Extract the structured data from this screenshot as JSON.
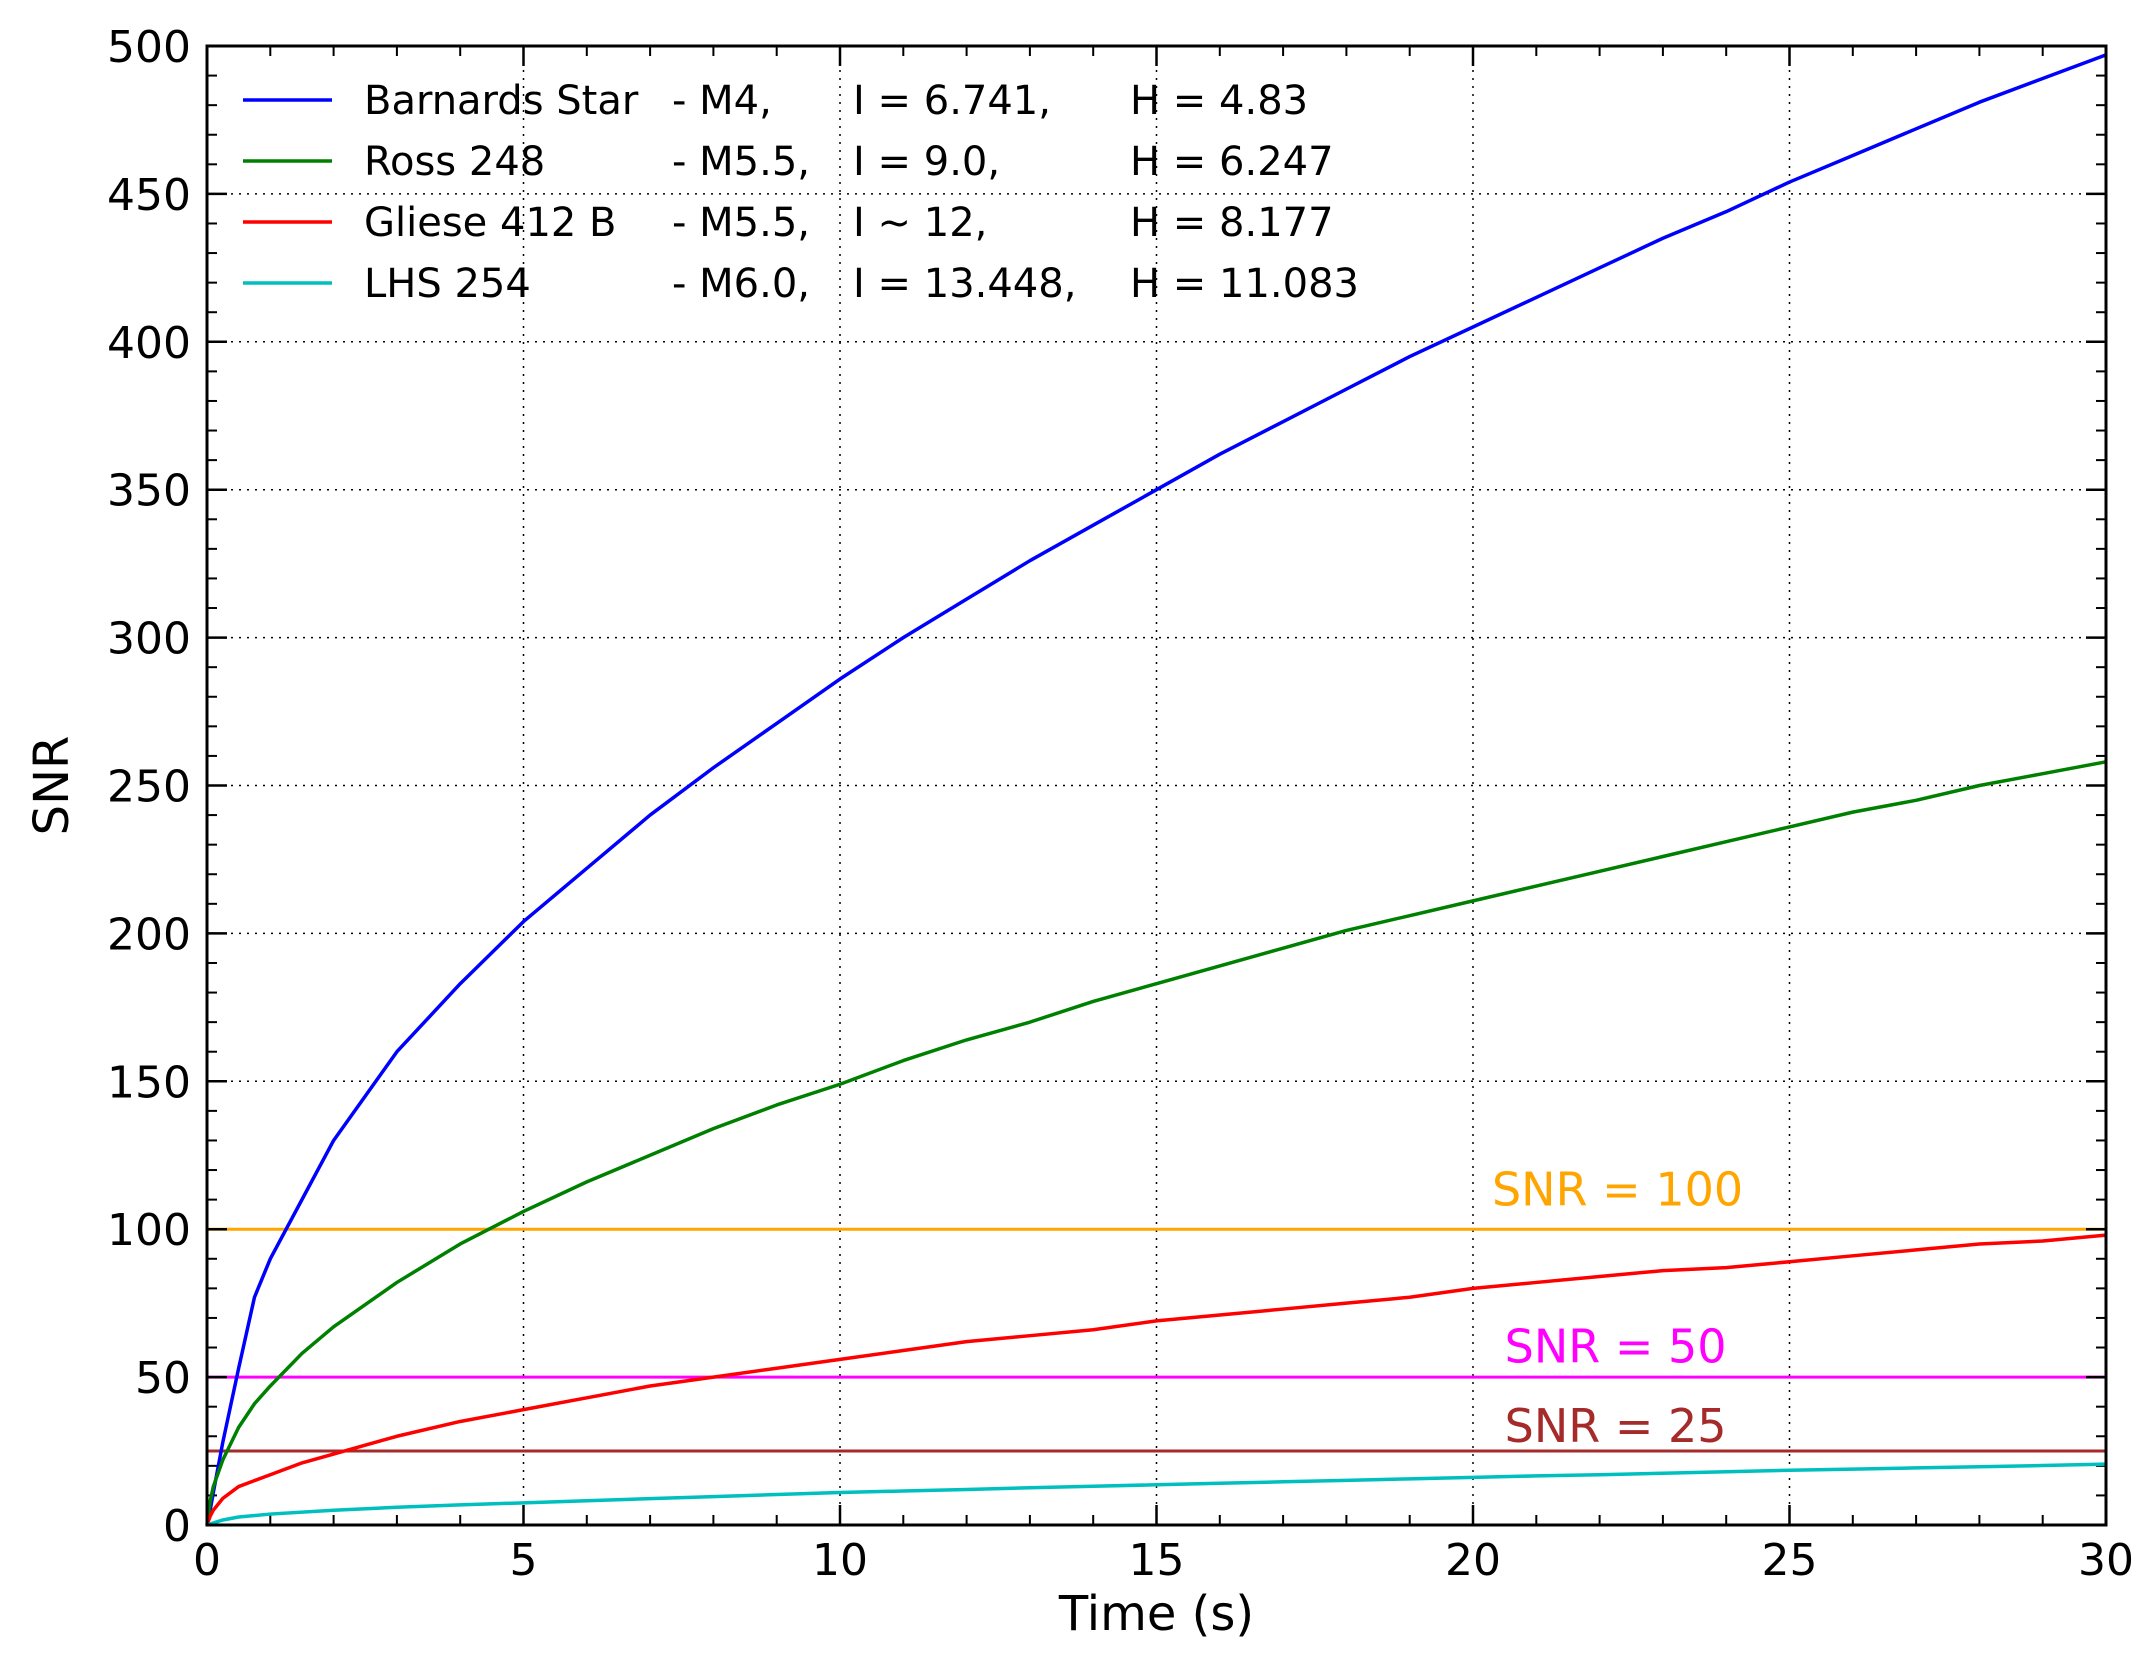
{
  "chart_data": {
    "type": "line",
    "xlabel": "Time (s)",
    "ylabel": "SNR",
    "xlim": [
      0,
      30
    ],
    "ylim": [
      0,
      500
    ],
    "x_ticks": [
      0,
      5,
      10,
      15,
      20,
      25,
      30
    ],
    "y_ticks": [
      0,
      50,
      100,
      150,
      200,
      250,
      300,
      350,
      400,
      450,
      500
    ],
    "grid": true,
    "legend_position": "top-left",
    "series": [
      {
        "name": "Barnards Star",
        "legend_cols": [
          "Barnards Star",
          "- M4,",
          "I = 6.741,",
          "H = 4.83"
        ],
        "color": "#0000ff",
        "x": [
          0,
          0.05,
          0.1,
          0.25,
          0.5,
          0.75,
          1,
          1.5,
          2,
          3,
          4,
          5,
          6,
          7,
          8,
          9,
          10,
          11,
          12,
          13,
          14,
          15,
          16,
          17,
          18,
          19,
          20,
          21,
          22,
          23,
          24,
          25,
          26,
          27,
          28,
          29,
          30
        ],
        "y": [
          0,
          5,
          11,
          28,
          53,
          77,
          90,
          110,
          130,
          160,
          183,
          204,
          222,
          240,
          256,
          271,
          286,
          300,
          313,
          326,
          338,
          350,
          362,
          373,
          384,
          395,
          405,
          415,
          425,
          435,
          444,
          454,
          463,
          472,
          481,
          489,
          497
        ]
      },
      {
        "name": "Ross 248",
        "legend_cols": [
          "Ross 248",
          "- M5.5,",
          "I = 9.0,",
          "H = 6.247"
        ],
        "color": "#008000",
        "x": [
          0,
          0.05,
          0.1,
          0.25,
          0.5,
          0.75,
          1,
          1.5,
          2,
          3,
          4,
          5,
          6,
          7,
          8,
          9,
          10,
          11,
          12,
          13,
          14,
          15,
          16,
          17,
          18,
          19,
          20,
          21,
          22,
          23,
          24,
          25,
          26,
          27,
          28,
          29,
          30
        ],
        "y": [
          0,
          8,
          13,
          22,
          33,
          41,
          47,
          58,
          67,
          82,
          95,
          106,
          116,
          125,
          134,
          142,
          149,
          157,
          164,
          170,
          177,
          183,
          189,
          195,
          201,
          206,
          211,
          216,
          221,
          226,
          231,
          236,
          241,
          245,
          250,
          254,
          258
        ]
      },
      {
        "name": "Gliese 412 B",
        "legend_cols": [
          "Gliese 412 B",
          "- M5.5,",
          "I ~ 12,",
          "H = 8.177"
        ],
        "color": "#ff0000",
        "x": [
          0,
          0.05,
          0.1,
          0.25,
          0.5,
          0.75,
          1,
          1.5,
          2,
          3,
          4,
          5,
          6,
          7,
          8,
          9,
          10,
          11,
          12,
          13,
          14,
          15,
          16,
          17,
          18,
          19,
          20,
          21,
          22,
          23,
          24,
          25,
          26,
          27,
          28,
          29,
          30
        ],
        "y": [
          0,
          3,
          5,
          9,
          13,
          15,
          17,
          21,
          24,
          30,
          35,
          39,
          43,
          47,
          50,
          53,
          56,
          59,
          62,
          64,
          66,
          69,
          71,
          73,
          75,
          77,
          80,
          82,
          84,
          86,
          87,
          89,
          91,
          93,
          95,
          96,
          98
        ]
      },
      {
        "name": "LHS 254",
        "legend_cols": [
          "LHS 254",
          "- M6.0,",
          "I = 13.448,",
          "H = 11.083"
        ],
        "color": "#00bfbf",
        "x": [
          0,
          0.25,
          0.5,
          1,
          2,
          3,
          4,
          5,
          6,
          7,
          8,
          9,
          10,
          11,
          12,
          13,
          14,
          15,
          16,
          17,
          18,
          19,
          20,
          21,
          22,
          23,
          24,
          25,
          26,
          27,
          28,
          29,
          30
        ],
        "y": [
          0,
          1.7,
          2.7,
          3.7,
          5,
          6,
          6.8,
          7.5,
          8.2,
          8.9,
          9.6,
          10.3,
          11,
          11.5,
          12,
          12.6,
          13.1,
          13.6,
          14.1,
          14.6,
          15.1,
          15.6,
          16.1,
          16.6,
          17,
          17.5,
          18,
          18.5,
          18.9,
          19.3,
          19.7,
          20.1,
          20.6
        ]
      }
    ],
    "reference_lines": [
      {
        "y": 100,
        "color": "#ffa500",
        "label": "SNR = 100",
        "label_x": 20.3,
        "label_y": 108
      },
      {
        "y": 50,
        "color": "#ff00ff",
        "label": "SNR = 50",
        "label_x": 20.5,
        "label_y": 55
      },
      {
        "y": 25,
        "color": "#a52a2a",
        "label": "SNR = 25",
        "label_x": 20.5,
        "label_y": 28
      }
    ]
  }
}
